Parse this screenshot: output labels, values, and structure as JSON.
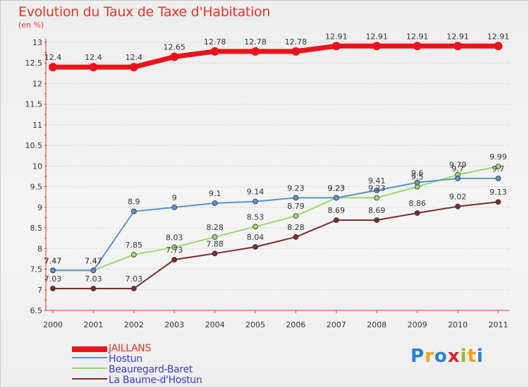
{
  "title": "Evolution du Taux de Taxe d'Habitation",
  "subtitle": "(en %)",
  "logo": "Proxiti",
  "colors": {
    "title": "#e2352a",
    "axis": "#e2352a",
    "grid": "#b0b0b0"
  },
  "chart_data": {
    "type": "line",
    "title": "Evolution du Taux de Taxe d'Habitation",
    "ylabel": "(en %)",
    "x": [
      "2000",
      "2001",
      "2002",
      "2003",
      "2004",
      "2005",
      "2006",
      "2007",
      "2008",
      "2009",
      "2010",
      "2011"
    ],
    "ylim": [
      6.5,
      13
    ],
    "yticks": [
      "6.5",
      "7",
      "7.5",
      "8",
      "8.5",
      "9",
      "9.5",
      "10",
      "10.5",
      "11",
      "11.5",
      "12",
      "12.5",
      "13"
    ],
    "grid": "horizontal dotted",
    "legend_position": "bottom-left",
    "series": [
      {
        "name": "JAILLANS",
        "color": "#e8141c",
        "values": [
          12.4,
          12.4,
          12.4,
          12.65,
          12.78,
          12.78,
          12.78,
          12.91,
          12.91,
          12.91,
          12.91,
          12.91
        ],
        "labels": [
          "12.4",
          "12.4",
          "12.4",
          "12.65",
          "12.78",
          "12.78",
          "12.78",
          "12.91",
          "12.91",
          "12.91",
          "12.91",
          "12.91"
        ]
      },
      {
        "name": "Hostun",
        "color": "#5b93c9",
        "values": [
          7.47,
          7.47,
          8.9,
          9,
          9.1,
          9.14,
          9.23,
          9.23,
          9.41,
          9.6,
          9.7,
          9.7
        ],
        "labels": [
          "7.47",
          "7.47",
          "8.9",
          "9",
          "9.1",
          "9.14",
          "9.23",
          "9.23",
          "9.41",
          "9.6",
          "9.7",
          "9.7"
        ]
      },
      {
        "name": "Beauregard-Baret",
        "color": "#9bd86c",
        "values": [
          7.47,
          7.47,
          7.85,
          8.03,
          8.28,
          8.53,
          8.79,
          9.23,
          9.23,
          9.5,
          9.79,
          9.99
        ],
        "labels": [
          "7.47",
          "7.47",
          "7.85",
          "8.03",
          "8.28",
          "8.53",
          "8.79",
          "9.23",
          "9.23",
          "9.5",
          "9.79",
          "9.99"
        ]
      },
      {
        "name": "La Baume-d'Hostun",
        "color": "#7a2d2d",
        "values": [
          7.03,
          7.03,
          7.03,
          7.73,
          7.88,
          8.04,
          8.28,
          8.69,
          8.69,
          8.86,
          9.02,
          9.13
        ],
        "labels": [
          "7.03",
          "7.03",
          "7.03",
          "7.73",
          "7.88",
          "8.04",
          "8.28",
          "8.69",
          "8.69",
          "8.86",
          "9.02",
          "9.13"
        ]
      }
    ]
  }
}
